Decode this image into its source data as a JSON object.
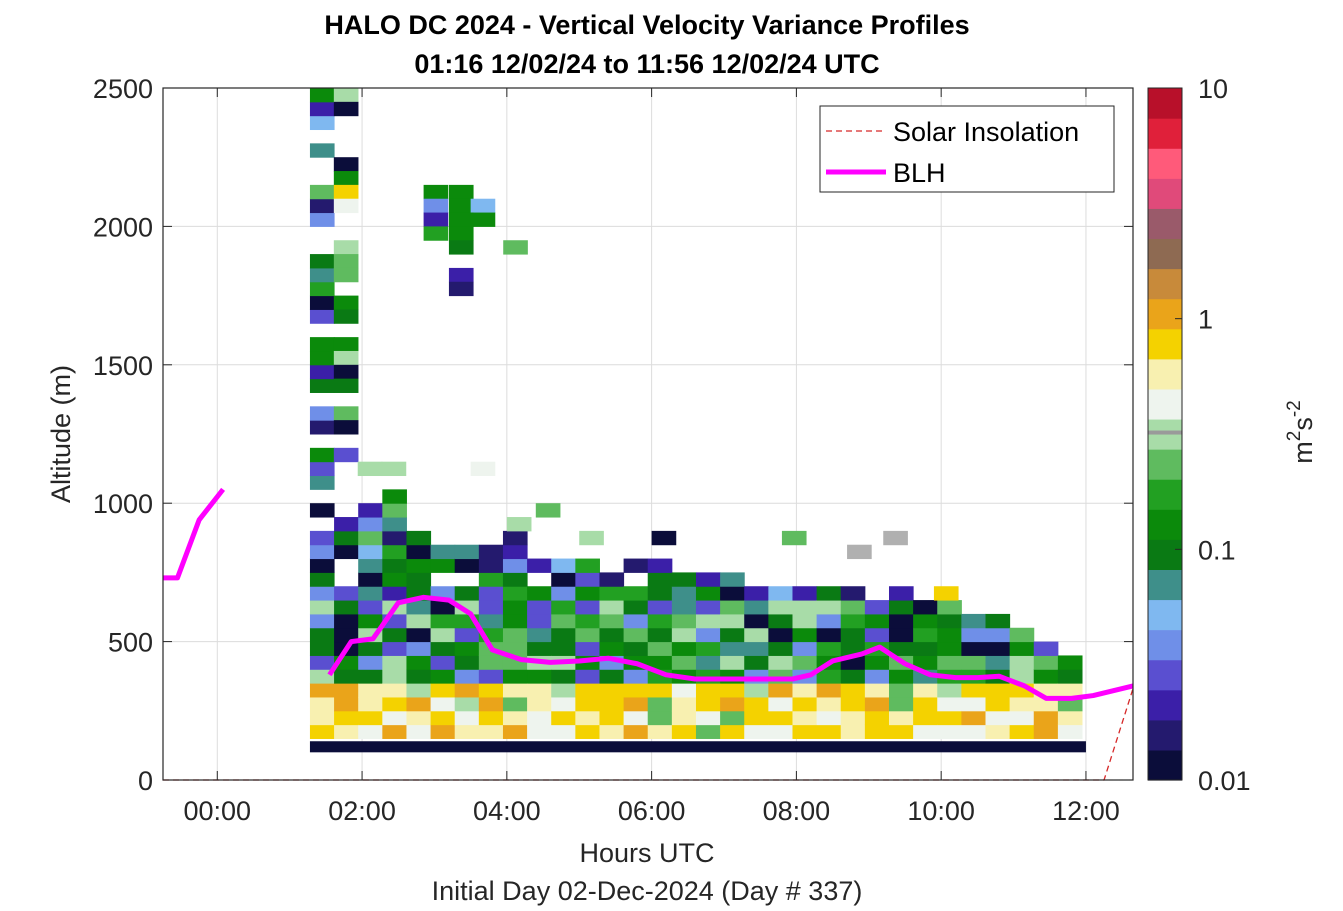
{
  "chart_data": {
    "type": "heatmap",
    "title": "HALO DC 2024 - Vertical Velocity Variance Profiles",
    "subtitle": "01:16 12/02/24 to 11:56 12/02/24  UTC",
    "xlabel": "Hours UTC",
    "xlabel2": "Initial Day 02-Dec-2024 (Day # 337)",
    "ylabel": "Altitude (m)",
    "xlim": [
      -0.75,
      12.65
    ],
    "ylim": [
      0,
      2500
    ],
    "x_ticks": [
      {
        "value": 0,
        "label": "00:00"
      },
      {
        "value": 2,
        "label": "02:00"
      },
      {
        "value": 4,
        "label": "04:00"
      },
      {
        "value": 6,
        "label": "06:00"
      },
      {
        "value": 8,
        "label": "08:00"
      },
      {
        "value": 10,
        "label": "10:00"
      },
      {
        "value": 12,
        "label": "12:00"
      }
    ],
    "y_ticks": [
      {
        "value": 0,
        "label": "0"
      },
      {
        "value": 500,
        "label": "500"
      },
      {
        "value": 1000,
        "label": "1000"
      },
      {
        "value": 1500,
        "label": "1500"
      },
      {
        "value": 2000,
        "label": "2000"
      },
      {
        "value": 2500,
        "label": "2500"
      }
    ],
    "grid": true,
    "legend": {
      "position": "top-right",
      "entries": [
        {
          "label": "Solar Insolation",
          "color": "#d62828",
          "style": "dashed"
        },
        {
          "label": "BLH",
          "color": "#ff00ff",
          "style": "solid"
        }
      ]
    },
    "colorbar": {
      "label": "m2s-2",
      "label_base": "m",
      "label_exp1": "2",
      "label_mid": "s",
      "label_exp2": "-2",
      "scale": "log",
      "range": [
        0.01,
        10
      ],
      "ticks": [
        {
          "value": 0.01,
          "label": "0.01"
        },
        {
          "value": 0.1,
          "label": "0.1"
        },
        {
          "value": 1,
          "label": "1"
        },
        {
          "value": 10,
          "label": "10"
        }
      ],
      "colors": [
        "#0b0d3a",
        "#241a6e",
        "#3b1fa8",
        "#5a4fd0",
        "#6f8fe8",
        "#7fb8f0",
        "#3e8f8a",
        "#0a7a14",
        "#0b8a0b",
        "#22a022",
        "#5fbb5f",
        "#a8dca8",
        "#eef4ee",
        "#f8f0b0",
        "#f4d200",
        "#eaa41a",
        "#c88a3a",
        "#8e6a52",
        "#9a5a6a",
        "#e04a7a",
        "#ff5a7a",
        "#e0203a",
        "#b8102a"
      ]
    },
    "blh": [
      {
        "x": -0.75,
        "y": 730
      },
      {
        "x": -0.55,
        "y": 730
      },
      {
        "x": -0.25,
        "y": 940
      },
      {
        "x": 0.08,
        "y": 1050
      },
      {
        "x": 1.55,
        "y": 380
      },
      {
        "x": 1.85,
        "y": 500
      },
      {
        "x": 2.15,
        "y": 510
      },
      {
        "x": 2.5,
        "y": 640
      },
      {
        "x": 2.85,
        "y": 660
      },
      {
        "x": 3.2,
        "y": 650
      },
      {
        "x": 3.5,
        "y": 600
      },
      {
        "x": 3.8,
        "y": 470
      },
      {
        "x": 4.2,
        "y": 435
      },
      {
        "x": 4.6,
        "y": 425
      },
      {
        "x": 5.0,
        "y": 430
      },
      {
        "x": 5.4,
        "y": 440
      },
      {
        "x": 5.8,
        "y": 420
      },
      {
        "x": 6.2,
        "y": 380
      },
      {
        "x": 6.6,
        "y": 365
      },
      {
        "x": 7.0,
        "y": 365
      },
      {
        "x": 7.5,
        "y": 365
      },
      {
        "x": 7.95,
        "y": 365
      },
      {
        "x": 8.2,
        "y": 380
      },
      {
        "x": 8.5,
        "y": 430
      },
      {
        "x": 8.9,
        "y": 455
      },
      {
        "x": 9.15,
        "y": 480
      },
      {
        "x": 9.5,
        "y": 420
      },
      {
        "x": 9.85,
        "y": 380
      },
      {
        "x": 10.2,
        "y": 370
      },
      {
        "x": 10.5,
        "y": 370
      },
      {
        "x": 10.8,
        "y": 375
      },
      {
        "x": 11.15,
        "y": 340
      },
      {
        "x": 11.45,
        "y": 295
      },
      {
        "x": 11.8,
        "y": 295
      },
      {
        "x": 12.1,
        "y": 305
      },
      {
        "x": 12.65,
        "y": 340
      }
    ],
    "solar": [
      {
        "x": -0.75,
        "y": 0
      },
      {
        "x": 12.25,
        "y": 0
      },
      {
        "x": 12.65,
        "y": 330
      }
    ],
    "time_column_width": 0.3333,
    "gate_height": 50,
    "base_gate": {
      "x0": 1.28,
      "x1": 12.0,
      "y0": 100,
      "y1": 140,
      "color": "#0b0d3a"
    },
    "columns": [
      {
        "x": 1.28,
        "cells": [
          "#e6eee6",
          "#22a022",
          "#0a7a14",
          "#0a7a14",
          "#0a7a14",
          "#0b8a0b",
          "#5a4fd0",
          "#6f8fe8",
          "#0a7a14",
          "#3e8f8a",
          "#3b1fa8",
          "#3b1fa8",
          "#5a4fd0",
          "#0a7a14",
          "#3e8f8a",
          "",
          "",
          "",
          "",
          "",
          "",
          "",
          "",
          "",
          "",
          "",
          "",
          "",
          "",
          "",
          "",
          "",
          "",
          "",
          "",
          "",
          "",
          "",
          "",
          "",
          "",
          "",
          "",
          "",
          "",
          "",
          "",
          "",
          "",
          "",
          "",
          "0a7a14",
          "0b8a0b",
          "0a7a14",
          "0b8a0b",
          "0a7a14",
          "0b8a0b",
          "0b8a0b",
          "0a7a14",
          "0b8a0b",
          "0b8a0b",
          "0a7a14",
          "0b8a0b",
          "22a022",
          "0b8a0b",
          "0a7a14",
          "0a7a14"
        ]
      },
      {
        "x": 1.61,
        "cells": [
          "#eef4ee",
          "#a8dca8",
          "#f4d200",
          "#eef4ee",
          "#5fbb5f",
          "#5fbb5f",
          "#6f8fe8",
          "#22a022",
          "#0a7a14",
          "#6f8fe8",
          "#0a7a14",
          "#3e8f8a",
          "#6f8fe8",
          "#5a4fd0",
          "#0a7a14",
          "#5a4fd0",
          "#0a7a14",
          "#3b1fa8",
          "#3e8f8a",
          "#5a4fd0"
        ]
      },
      {
        "x": 1.94,
        "cells": []
      }
    ]
  }
}
